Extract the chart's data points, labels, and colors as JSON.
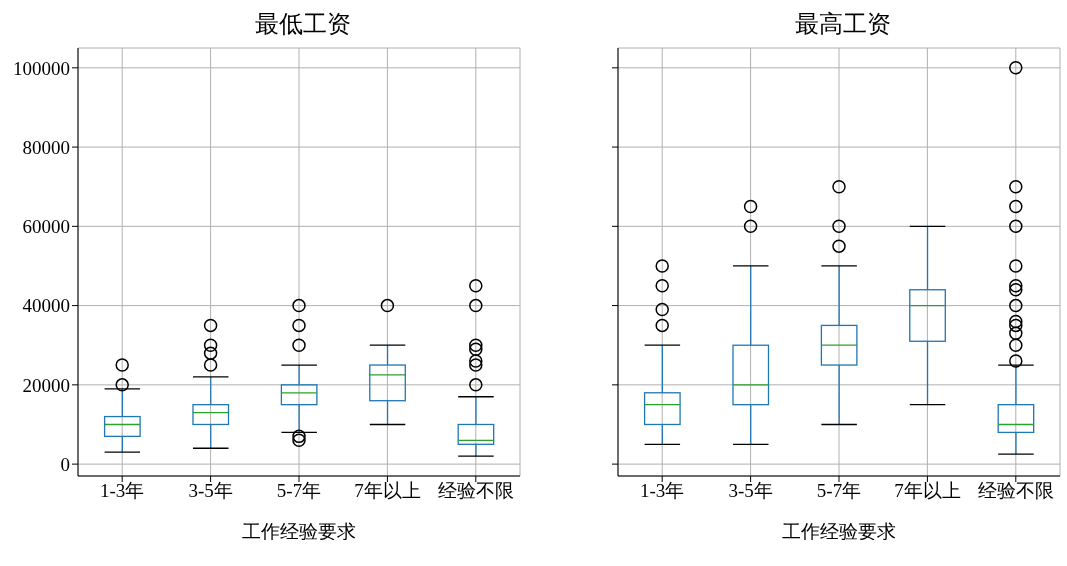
{
  "chart_data": [
    {
      "type": "box",
      "title": "最低工资",
      "xlabel": "工作经验要求",
      "categories": [
        "1-3年",
        "3-5年",
        "5-7年",
        "7年以上",
        "经验不限"
      ],
      "ylim": [
        -3000,
        105000
      ],
      "yticks": [
        0,
        20000,
        40000,
        60000,
        80000,
        100000
      ],
      "grid": true,
      "series": [
        {
          "color": "#1f77b4",
          "boxes": [
            {
              "low": 3000,
              "q1": 7000,
              "median": 10000,
              "q3": 12000,
              "high": 19000,
              "outliers": [
                20000,
                25000
              ]
            },
            {
              "low": 4000,
              "q1": 10000,
              "median": 13000,
              "q3": 15000,
              "high": 22000,
              "outliers": [
                25000,
                28000,
                30000,
                35000
              ]
            },
            {
              "low": 8000,
              "q1": 15000,
              "median": 18000,
              "q3": 20000,
              "high": 25000,
              "outliers": [
                6000,
                7000,
                30000,
                35000,
                40000
              ]
            },
            {
              "low": 10000,
              "q1": 16000,
              "median": 22500,
              "q3": 25000,
              "high": 30000,
              "outliers": [
                40000
              ]
            },
            {
              "low": 2000,
              "q1": 5000,
              "median": 6000,
              "q3": 10000,
              "high": 17000,
              "outliers": [
                20000,
                25000,
                26000,
                29000,
                30000,
                40000,
                45000
              ]
            }
          ]
        }
      ]
    },
    {
      "type": "box",
      "title": "最高工资",
      "xlabel": "工作经验要求",
      "categories": [
        "1-3年",
        "3-5年",
        "5-7年",
        "7年以上",
        "经验不限"
      ],
      "ylim": [
        -3000,
        105000
      ],
      "yticks": [
        0,
        20000,
        40000,
        60000,
        80000,
        100000
      ],
      "grid": true,
      "tick_labels": "x",
      "series": [
        {
          "color": "#1f77b4",
          "boxes": [
            {
              "low": 5000,
              "q1": 10000,
              "median": 15000,
              "q3": 18000,
              "high": 30000,
              "outliers": [
                35000,
                39000,
                45000,
                50000
              ]
            },
            {
              "low": 5000,
              "q1": 15000,
              "median": 20000,
              "q3": 30000,
              "high": 50000,
              "outliers": [
                60000,
                65000
              ]
            },
            {
              "low": 10000,
              "q1": 25000,
              "median": 30000,
              "q3": 35000,
              "high": 50000,
              "outliers": [
                55000,
                60000,
                70000
              ]
            },
            {
              "low": 15000,
              "q1": 31000,
              "median": 40000,
              "q3": 44000,
              "high": 60000
            },
            {
              "low": 2500,
              "q1": 8000,
              "median": 10000,
              "q3": 15000,
              "high": 25000,
              "outliers": [
                26000,
                30000,
                33000,
                35000,
                36000,
                40000,
                44000,
                45000,
                50000,
                60000,
                65000,
                70000,
                100000
              ]
            }
          ]
        }
      ]
    }
  ]
}
